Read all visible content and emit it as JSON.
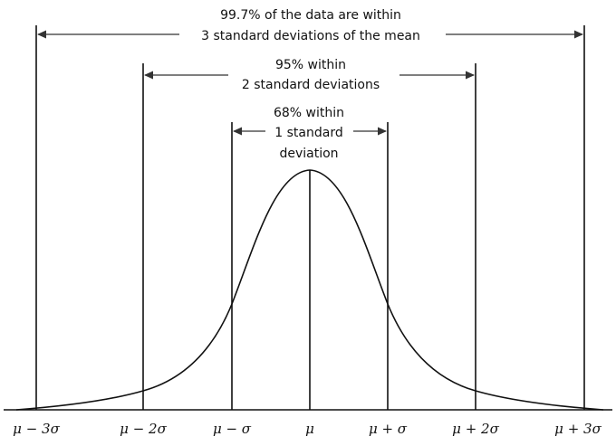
{
  "ranges": [
    {
      "lines": [
        "99.7% of the data are within",
        "3 standard deviations of the mean"
      ],
      "k": 3
    },
    {
      "lines": [
        "95% within",
        "2 standard deviations"
      ],
      "k": 2
    },
    {
      "lines": [
        "68% within",
        "1 standard",
        "deviation"
      ],
      "k": 1
    }
  ],
  "ticks": [
    "μ − 3σ",
    "μ − 2σ",
    "μ − σ",
    "μ",
    "μ + σ",
    "μ + 2σ",
    "μ + 3σ"
  ],
  "colors": {
    "ink": "#111111",
    "arrow": "#333333"
  }
}
